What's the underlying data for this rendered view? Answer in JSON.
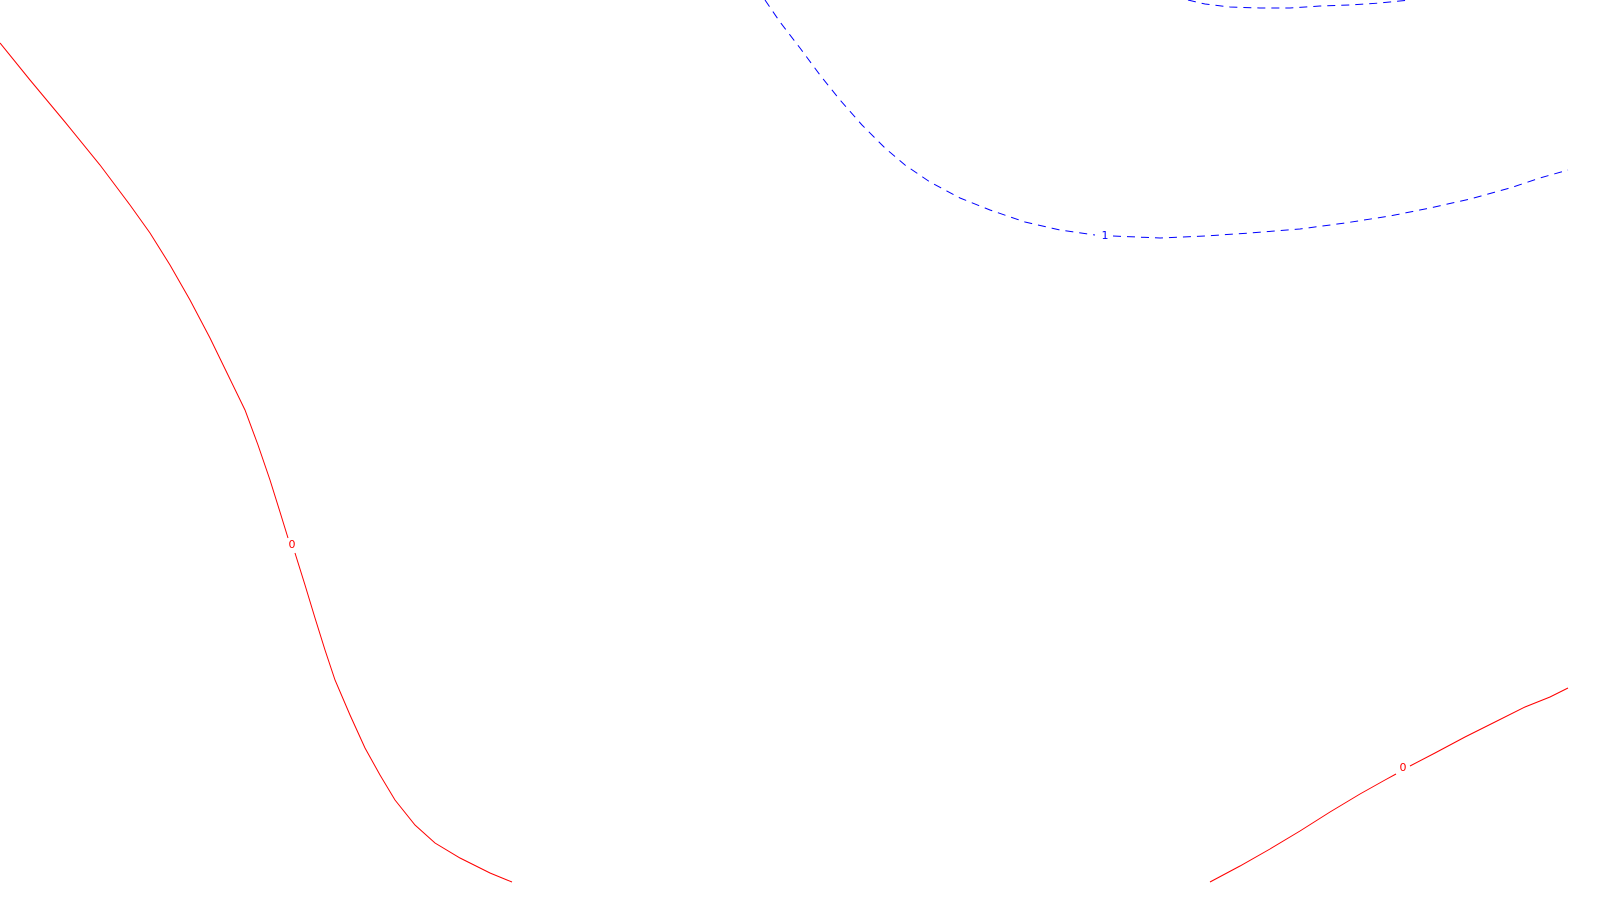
{
  "contours": [
    {
      "id": "zero-contour-left",
      "level_label": "0",
      "color": "#ff0000",
      "style": "solid"
    },
    {
      "id": "zero-contour-right",
      "level_label": "0",
      "color": "#ff0000",
      "style": "solid"
    },
    {
      "id": "one-contour",
      "level_label": "1",
      "color": "#0000ff",
      "style": "dashed"
    },
    {
      "id": "upper-blue-contour",
      "level_label": "",
      "color": "#0000ff",
      "style": "dashed"
    }
  ],
  "background_color": "#ffffff"
}
